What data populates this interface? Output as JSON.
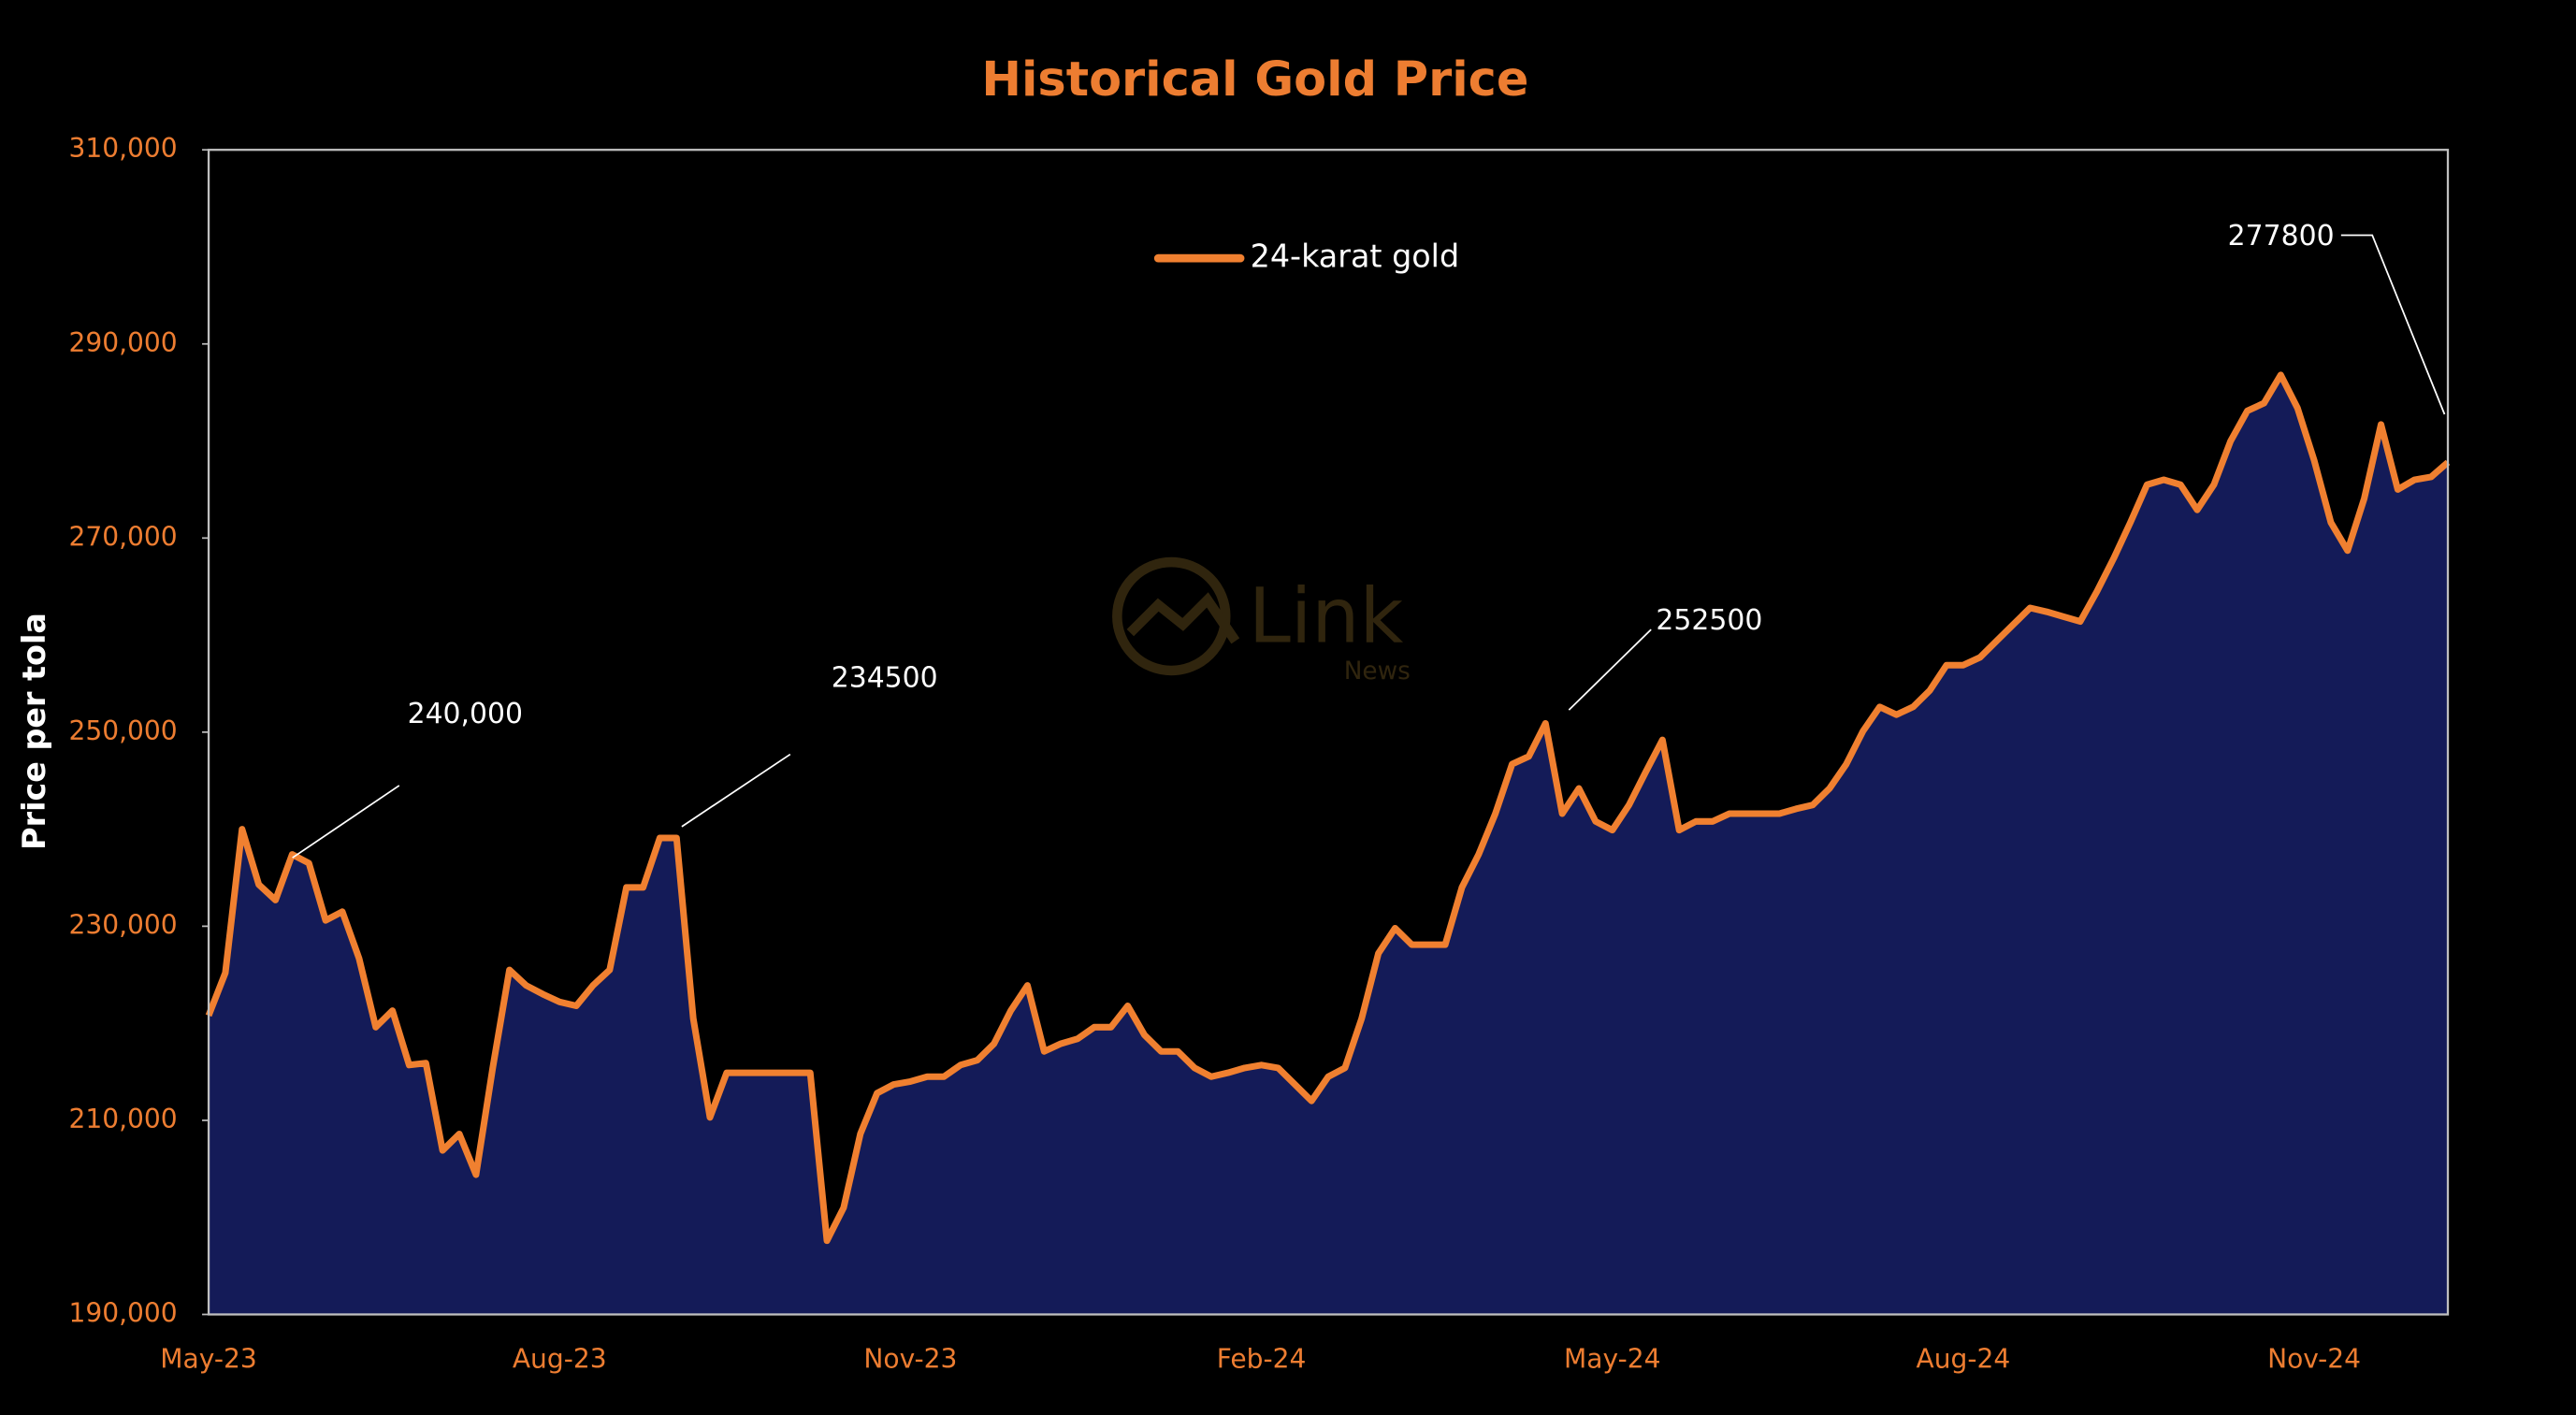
{
  "chart_data": {
    "type": "area",
    "title": "Historical Gold Price",
    "y_label": "Price per tola",
    "watermark": {
      "logo": "Link",
      "sub": "News"
    },
    "categories": [
      "May-23",
      null,
      null,
      null,
      null,
      null,
      null,
      null,
      null,
      null,
      null,
      null,
      null,
      null,
      null,
      null,
      null,
      null,
      null,
      null,
      null,
      "Aug-23",
      null,
      null,
      null,
      null,
      null,
      null,
      null,
      null,
      null,
      null,
      null,
      null,
      null,
      null,
      null,
      null,
      null,
      null,
      null,
      null,
      "Nov-23",
      null,
      null,
      null,
      null,
      null,
      null,
      null,
      null,
      null,
      null,
      null,
      null,
      null,
      null,
      null,
      null,
      null,
      null,
      null,
      null,
      "Feb-24",
      null,
      null,
      null,
      null,
      null,
      null,
      null,
      null,
      null,
      null,
      null,
      null,
      null,
      null,
      null,
      null,
      null,
      null,
      null,
      null,
      "May-24",
      null,
      null,
      null,
      null,
      null,
      null,
      null,
      null,
      null,
      null,
      null,
      null,
      null,
      null,
      null,
      null,
      null,
      null,
      null,
      null,
      "Aug-24",
      null,
      null,
      null,
      null,
      null,
      null,
      null,
      null,
      null,
      null,
      null,
      null,
      null,
      null,
      null,
      null,
      null,
      null,
      null,
      null,
      "Nov-24",
      null,
      null,
      null,
      null,
      null,
      null,
      null,
      null
    ],
    "series": [
      {
        "name": "24-karat gold",
        "color": "#f08030",
        "fill": "#141b58",
        "values": [
          220800,
          225200,
          240000,
          234300,
          232700,
          237400,
          236500,
          230600,
          231500,
          226700,
          219600,
          221300,
          215700,
          215900,
          206900,
          208600,
          204400,
          215400,
          225500,
          223900,
          223000,
          222200,
          221800,
          223900,
          225500,
          234000,
          234000,
          239100,
          239100,
          220500,
          210300,
          214900,
          214900,
          214900,
          214900,
          214900,
          214900,
          197600,
          201000,
          208600,
          212800,
          213700,
          214000,
          214500,
          214500,
          215700,
          216200,
          217900,
          221300,
          223900,
          217100,
          217900,
          218400,
          219600,
          219600,
          221800,
          218800,
          217100,
          217100,
          215400,
          214500,
          214900,
          215400,
          215700,
          215400,
          213700,
          212000,
          214500,
          215400,
          220500,
          227200,
          229800,
          228100,
          228100,
          228100,
          234000,
          237400,
          241600,
          246700,
          247500,
          250900,
          241600,
          244200,
          240800,
          239900,
          242500,
          245900,
          249200,
          239900,
          240800,
          240800,
          241600,
          241600,
          241600,
          241600,
          242100,
          242500,
          244200,
          246700,
          250100,
          252600,
          251800,
          252600,
          254300,
          256900,
          256900,
          257700,
          259400,
          261100,
          262800,
          262400,
          261900,
          261400,
          264500,
          267900,
          271600,
          275500,
          276000,
          275500,
          272900,
          275500,
          280000,
          283100,
          283900,
          286800,
          283400,
          278000,
          271600,
          268700,
          274100,
          281700,
          275000,
          276000,
          276300,
          277800
        ]
      }
    ],
    "ylim": [
      190000,
      310000
    ],
    "yticks": [
      {
        "value": 190000,
        "label": "190,000"
      },
      {
        "value": 210000,
        "label": "210,000"
      },
      {
        "value": 230000,
        "label": "230,000"
      },
      {
        "value": 250000,
        "label": "250,000"
      },
      {
        "value": 270000,
        "label": "270,000"
      },
      {
        "value": 290000,
        "label": "290,000"
      },
      {
        "value": 310000,
        "label": "310,000"
      }
    ],
    "annotations": [
      "240,000",
      "234500",
      "252500",
      "277800"
    ],
    "legend": "top-center",
    "title_color": "#ed7d31",
    "tick_color": "#ed7d31"
  }
}
